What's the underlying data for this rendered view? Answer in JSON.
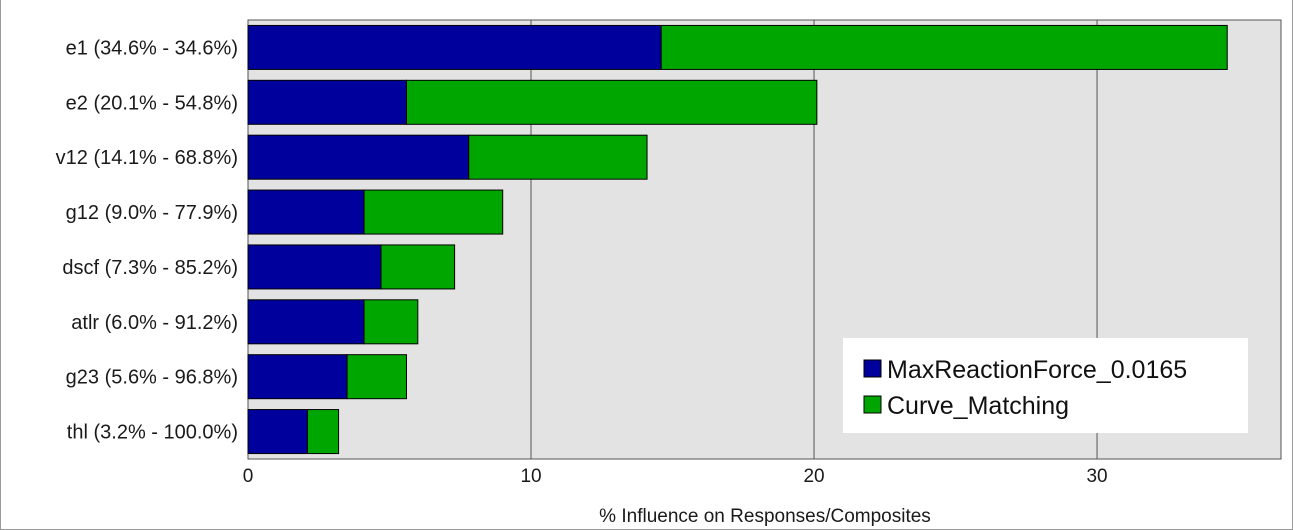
{
  "chart_data": {
    "type": "bar",
    "orientation": "horizontal",
    "stacked": true,
    "categories": [
      "e1 (34.6% - 34.6%)",
      "e2 (20.1% - 54.8%)",
      "v12 (14.1% - 68.8%)",
      "g12 (9.0% - 77.9%)",
      "dscf (7.3% - 85.2%)",
      "atlr (6.0% - 91.2%)",
      "g23 (5.6% - 96.8%)",
      "thl (3.2% - 100.0%)"
    ],
    "series": [
      {
        "name": "MaxReactionForce_0.0165",
        "color": "#00009c",
        "values": [
          14.6,
          5.6,
          7.8,
          4.1,
          4.7,
          4.1,
          3.5,
          2.1
        ]
      },
      {
        "name": "Curve_Matching",
        "color": "#00a600",
        "values": [
          20.0,
          14.5,
          6.3,
          4.9,
          2.6,
          1.9,
          2.1,
          1.1
        ]
      }
    ],
    "xlabel": "% Influence on Responses/Composites",
    "ylabel": "",
    "xlim": [
      0,
      36.5
    ],
    "xticks": [
      0,
      10,
      20,
      30
    ],
    "grid": "vertical",
    "legend_position": "bottom-right",
    "plot_background": "#e3e3e3"
  }
}
